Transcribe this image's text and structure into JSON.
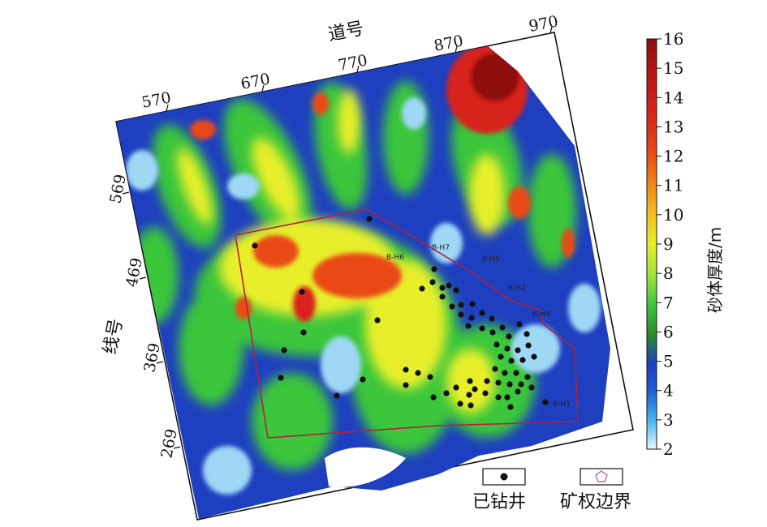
{
  "axes": {
    "top_title": "道号",
    "left_title": "线号",
    "top_ticks": [
      "570",
      "670",
      "770",
      "870",
      "970"
    ],
    "left_ticks": [
      "569",
      "469",
      "369",
      "269"
    ]
  },
  "colorbar": {
    "title": "砂体厚度/m",
    "min": 2,
    "max": 16,
    "ticks": [
      "2",
      "3",
      "4",
      "5",
      "6",
      "7",
      "8",
      "9",
      "10",
      "11",
      "12",
      "13",
      "14",
      "15",
      "16"
    ],
    "colors": [
      "#e8f8ff",
      "#49b5f0",
      "#1f5fd6",
      "#1e3fc0",
      "#2a8d2a",
      "#3ac63a",
      "#9be23b",
      "#e8ef2c",
      "#f2c21e",
      "#f08a18",
      "#ea4a14",
      "#d8241a",
      "#b81515",
      "#8e0d0d"
    ]
  },
  "legend": {
    "well_label": "已钻井",
    "boundary_label": "矿权边界"
  },
  "map_labels": [
    "B-H6",
    "B-H7",
    "B-H5",
    "B-H2",
    "B-H4",
    "B-H1"
  ]
}
